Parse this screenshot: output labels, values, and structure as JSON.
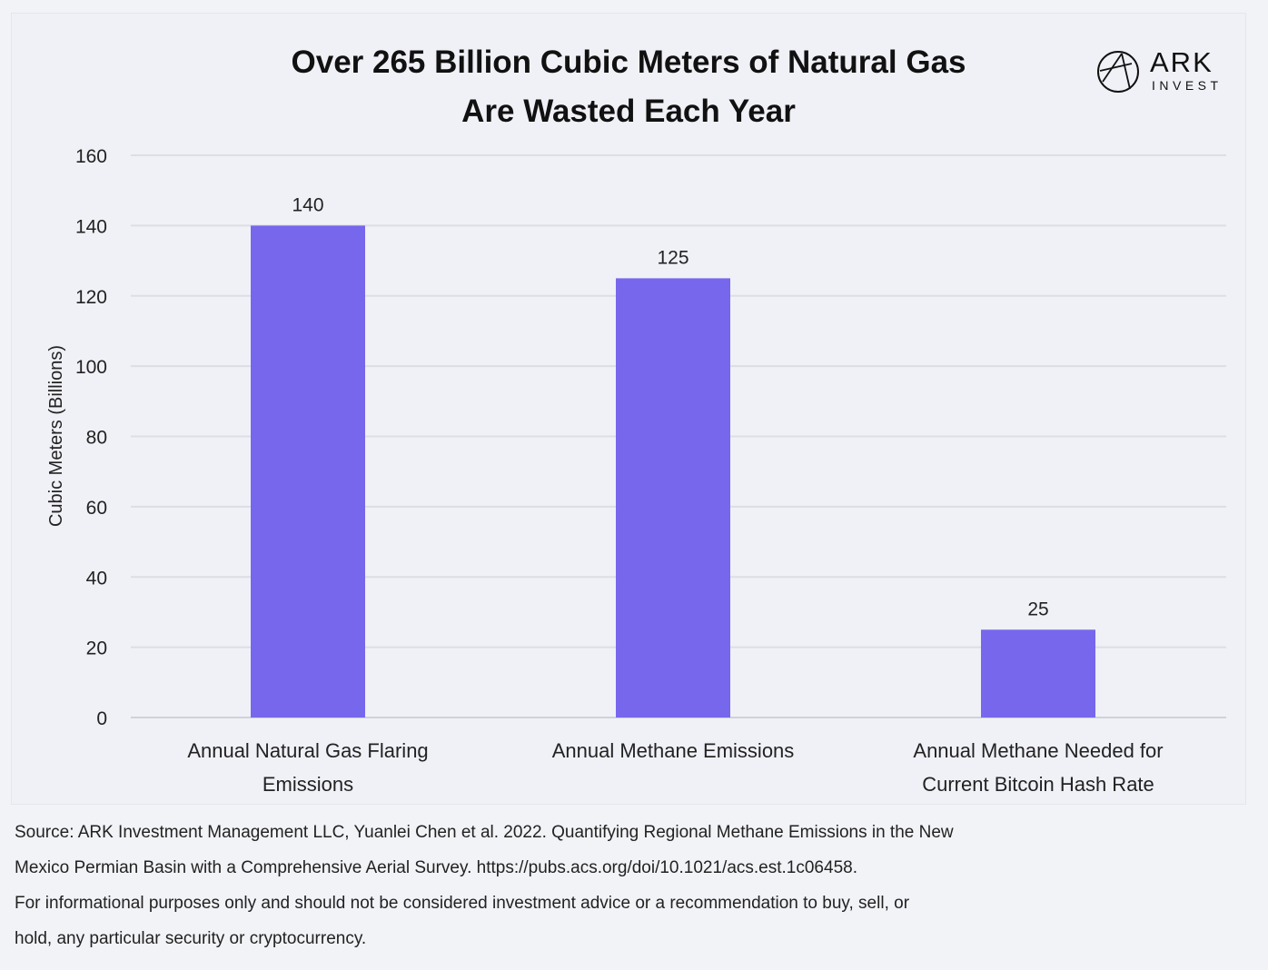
{
  "header": {
    "title_line1": "Over 265 Billion Cubic Meters of Natural Gas",
    "title_line2": "Are Wasted Each Year",
    "logo_word": "ARK",
    "logo_sub": "INVEST"
  },
  "chart_data": {
    "type": "bar",
    "title": "Over 265 Billion Cubic Meters of Natural Gas Are Wasted Each Year",
    "ylabel": "Cubic Meters (Billions)",
    "xlabel": "",
    "ylim": [
      0,
      160
    ],
    "yticks": [
      0,
      20,
      40,
      60,
      80,
      100,
      120,
      140,
      160
    ],
    "grid": true,
    "categories": [
      [
        "Annual Natural Gas Flaring",
        "Emissions"
      ],
      [
        "Annual Methane Emissions"
      ],
      [
        "Annual Methane Needed for",
        "Current Bitcoin Hash Rate"
      ]
    ],
    "values": [
      140,
      125,
      25
    ],
    "data_labels": [
      "140",
      "125",
      "25"
    ],
    "bar_color": "#7667ec"
  },
  "footer": {
    "source_line1": "Source: ARK Investment Management LLC, Yuanlei Chen et al. 2022. Quantifying Regional Methane Emissions in the New",
    "source_line2": "Mexico Permian Basin with a Comprehensive Aerial Survey. https://pubs.acs.org/doi/10.1021/acs.est.1c06458.",
    "disclaimer_line1": "For informational purposes only and should not be considered investment advice or a recommendation to buy, sell, or",
    "disclaimer_line2": "hold, any particular security or cryptocurrency."
  }
}
